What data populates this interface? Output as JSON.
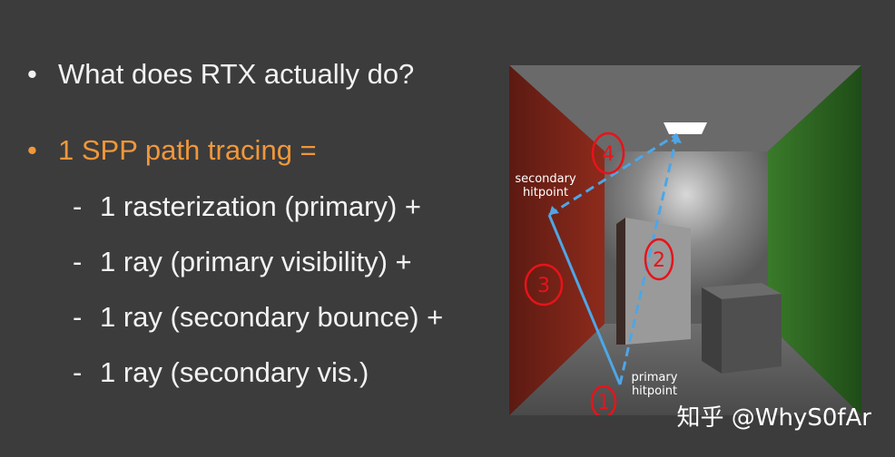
{
  "bullets": [
    {
      "dot": "•",
      "text": "What does RTX actually do?"
    },
    {
      "dot": "•",
      "text": "1 SPP path tracing ="
    }
  ],
  "sub_items": [
    {
      "dash": "-",
      "text": "1 rasterization (primary) +"
    },
    {
      "dash": "-",
      "text": "1 ray (primary visibility) +"
    },
    {
      "dash": "-",
      "text": "1 ray (secondary bounce) +"
    },
    {
      "dash": "-",
      "text": "1 ray (secondary vis.)"
    }
  ],
  "figure": {
    "label_secondary": [
      "secondary",
      "hitpoint"
    ],
    "label_primary": [
      "primary",
      "hitpoint"
    ],
    "annotations": [
      "1",
      "2",
      "3",
      "4"
    ]
  },
  "watermark": "知乎 @WhyS0fAr",
  "colors": {
    "background": "#3c3c3d",
    "accent_orange": "#f0973a",
    "ray_blue": "#4ea6e6",
    "annotation_red": "#e8131a",
    "left_wall": "#7a2418",
    "right_wall": "#2f6a22"
  }
}
